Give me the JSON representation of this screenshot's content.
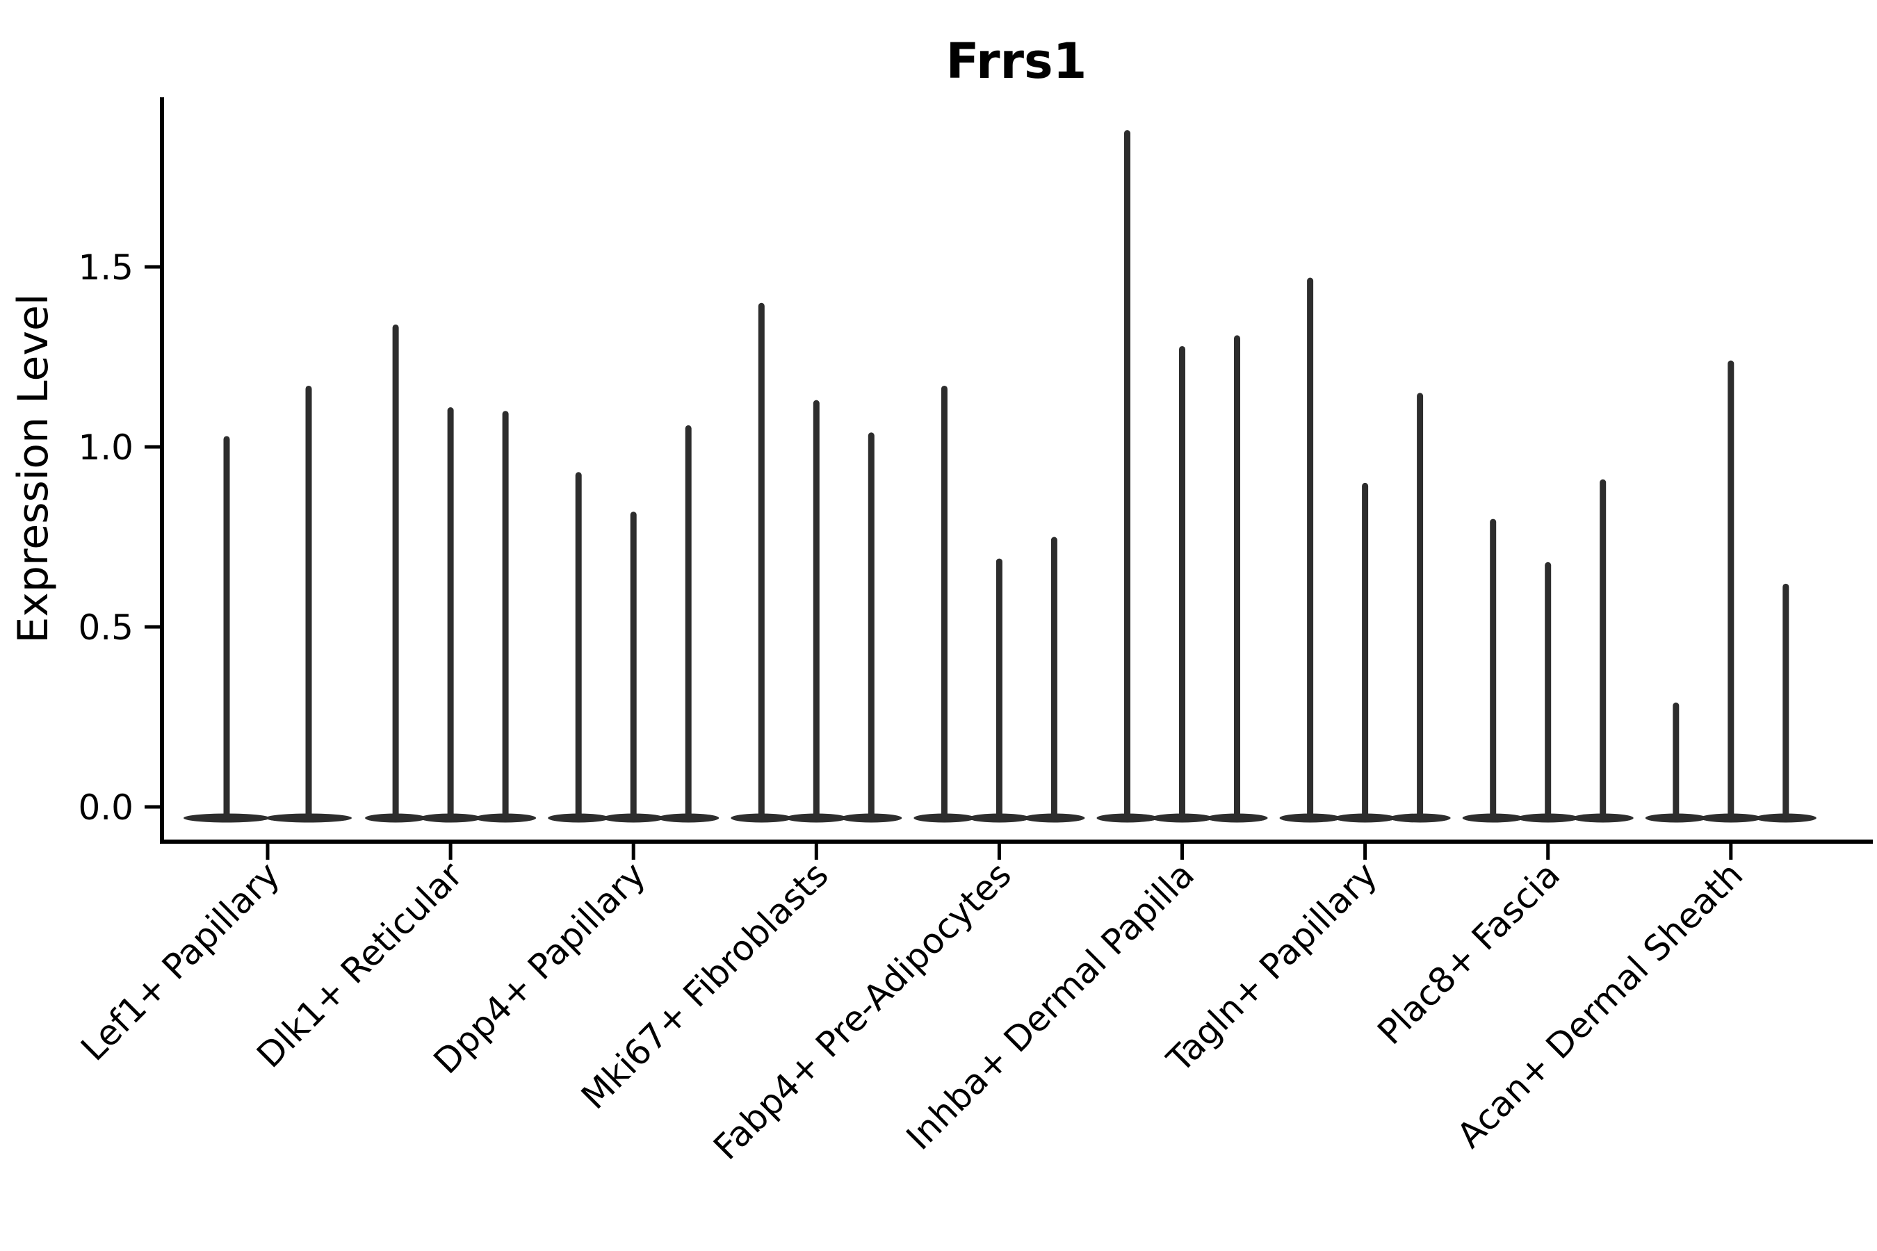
{
  "chart_data": {
    "type": "violin",
    "title": "Frrs1",
    "ylabel": "Expression Level",
    "xlabel": "",
    "yticks": [
      0.0,
      0.5,
      1.0,
      1.5
    ],
    "ylim": [
      -0.09,
      1.97
    ],
    "grid": false,
    "legend": "none",
    "background": "#ffffff",
    "colors": {
      "violin": "#2d2d2d",
      "axis": "#000000",
      "text": "#000000"
    },
    "categories": [
      "Lef1+ Papillary",
      "Dlk1+ Reticular",
      "Dpp4+ Papillary",
      "Mki67+ Fibroblasts",
      "Fabp4+ Pre-Adipocytes",
      "Inhba+ Dermal Papilla",
      "Tagln+ Papillary",
      "Plac8+ Fascia",
      "Acan+ Dermal Sheath"
    ],
    "series": [
      {
        "category": "Lef1+ Papillary",
        "spike_maxima": [
          1.03,
          1.17
        ]
      },
      {
        "category": "Dlk1+ Reticular",
        "spike_maxima": [
          1.34,
          1.11,
          1.1
        ]
      },
      {
        "category": "Dpp4+ Papillary",
        "spike_maxima": [
          0.93,
          0.82,
          1.06
        ]
      },
      {
        "category": "Mki67+ Fibroblasts",
        "spike_maxima": [
          1.4,
          1.13,
          1.04
        ]
      },
      {
        "category": "Fabp4+ Pre-Adipocytes",
        "spike_maxima": [
          1.17,
          0.69,
          0.75
        ]
      },
      {
        "category": "Inhba+ Dermal Papilla",
        "spike_maxima": [
          1.88,
          1.28,
          1.31
        ]
      },
      {
        "category": "Tagln+ Papillary",
        "spike_maxima": [
          1.47,
          0.9,
          1.15
        ]
      },
      {
        "category": "Plac8+ Fascia",
        "spike_maxima": [
          0.8,
          0.68,
          0.91
        ]
      },
      {
        "category": "Acan+ Dermal Sheath",
        "spike_maxima": [
          0.29,
          1.24,
          0.62
        ]
      }
    ],
    "violins_at_zero_note": "each violin collapses to a flat base at expression 0 with a thin spike to its maximum"
  }
}
